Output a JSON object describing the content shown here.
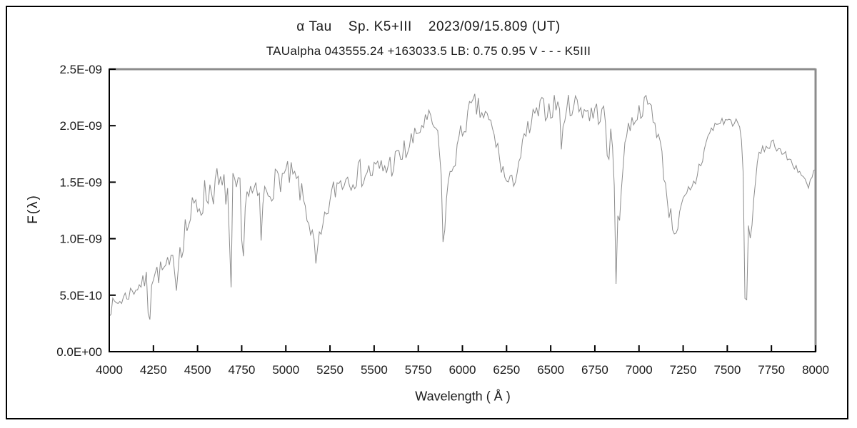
{
  "page": {
    "background": "#ffffff",
    "border_color": "#000000"
  },
  "chart_data": {
    "type": "line",
    "title": "α Tau    Sp. K5+III    2023/09/15.809 (UT)",
    "subtitle": "TAUalpha 043555.24 +163033.5 LB: 0.75 0.95 V - - - K5III",
    "xlabel": "Wavelength ( Å )",
    "ylabel": "F(λ)",
    "xlim": [
      4000,
      8000
    ],
    "ylim": [
      0,
      2.5e-09
    ],
    "flux_scale": 1e-09,
    "grid": false,
    "legend": "none",
    "x_ticks": [
      4000,
      4250,
      4500,
      4750,
      5000,
      5250,
      5500,
      5750,
      6000,
      6250,
      6500,
      6750,
      7000,
      7250,
      7500,
      7750,
      8000
    ],
    "y_ticks": [
      {
        "value": 0,
        "label": "0.0E+00"
      },
      {
        "value": 5e-10,
        "label": "5.0E-10"
      },
      {
        "value": 1e-09,
        "label": "1.0E-09"
      },
      {
        "value": 1.5e-09,
        "label": "1.5E-09"
      },
      {
        "value": 2e-09,
        "label": "2.0E-09"
      },
      {
        "value": 2.5e-09,
        "label": "2.5E-09"
      }
    ],
    "line_color": "#8c8c8c",
    "axis_color": "#000000",
    "frame_color": "#8c8c8c",
    "sample_step": 10,
    "noise_seed": 7,
    "envelope_points": [
      [
        4000,
        0.38
      ],
      [
        4030,
        0.42
      ],
      [
        4060,
        0.45
      ],
      [
        4100,
        0.5
      ],
      [
        4140,
        0.55
      ],
      [
        4180,
        0.6
      ],
      [
        4220,
        0.63
      ],
      [
        4250,
        0.68
      ],
      [
        4280,
        0.7
      ],
      [
        4310,
        0.72
      ],
      [
        4340,
        0.74
      ],
      [
        4370,
        0.8
      ],
      [
        4400,
        0.95
      ],
      [
        4430,
        1.08
      ],
      [
        4460,
        1.18
      ],
      [
        4490,
        1.28
      ],
      [
        4520,
        1.33
      ],
      [
        4550,
        1.4
      ],
      [
        4580,
        1.45
      ],
      [
        4610,
        1.48
      ],
      [
        4640,
        1.42
      ],
      [
        4670,
        1.44
      ],
      [
        4700,
        1.46
      ],
      [
        4730,
        1.42
      ],
      [
        4760,
        1.4
      ],
      [
        4790,
        1.42
      ],
      [
        4820,
        1.38
      ],
      [
        4850,
        1.36
      ],
      [
        4880,
        1.4
      ],
      [
        4910,
        1.44
      ],
      [
        4940,
        1.5
      ],
      [
        4970,
        1.54
      ],
      [
        5000,
        1.56
      ],
      [
        5030,
        1.55
      ],
      [
        5060,
        1.5
      ],
      [
        5090,
        1.4
      ],
      [
        5120,
        1.22
      ],
      [
        5150,
        1.02
      ],
      [
        5175,
        0.9
      ],
      [
        5200,
        1.02
      ],
      [
        5230,
        1.22
      ],
      [
        5260,
        1.38
      ],
      [
        5290,
        1.48
      ],
      [
        5320,
        1.52
      ],
      [
        5350,
        1.55
      ],
      [
        5400,
        1.57
      ],
      [
        5450,
        1.58
      ],
      [
        5500,
        1.6
      ],
      [
        5550,
        1.62
      ],
      [
        5600,
        1.66
      ],
      [
        5650,
        1.72
      ],
      [
        5700,
        1.82
      ],
      [
        5740,
        1.92
      ],
      [
        5780,
        2.02
      ],
      [
        5810,
        2.05
      ],
      [
        5840,
        2.0
      ],
      [
        5865,
        1.85
      ],
      [
        5880,
        1.55
      ],
      [
        5893,
        1.02
      ],
      [
        5905,
        1.3
      ],
      [
        5920,
        1.5
      ],
      [
        5950,
        1.68
      ],
      [
        5980,
        1.85
      ],
      [
        6010,
        2.0
      ],
      [
        6040,
        2.12
      ],
      [
        6070,
        2.18
      ],
      [
        6100,
        2.12
      ],
      [
        6130,
        2.08
      ],
      [
        6160,
        2.0
      ],
      [
        6190,
        1.85
      ],
      [
        6220,
        1.65
      ],
      [
        6250,
        1.5
      ],
      [
        6280,
        1.48
      ],
      [
        6310,
        1.62
      ],
      [
        6340,
        1.8
      ],
      [
        6370,
        1.95
      ],
      [
        6400,
        2.05
      ],
      [
        6430,
        2.12
      ],
      [
        6460,
        2.16
      ],
      [
        6490,
        2.14
      ],
      [
        6520,
        2.18
      ],
      [
        6550,
        2.2
      ],
      [
        6580,
        2.14
      ],
      [
        6610,
        2.18
      ],
      [
        6640,
        2.2
      ],
      [
        6670,
        2.16
      ],
      [
        6700,
        2.14
      ],
      [
        6730,
        2.1
      ],
      [
        6760,
        2.12
      ],
      [
        6790,
        2.1
      ],
      [
        6820,
        2.06
      ],
      [
        6845,
        2.0
      ],
      [
        6862,
        1.65
      ],
      [
        6872,
        1.1
      ],
      [
        6882,
        1.35
      ],
      [
        6892,
        1.15
      ],
      [
        6905,
        1.6
      ],
      [
        6920,
        1.85
      ],
      [
        6940,
        1.98
      ],
      [
        6965,
        2.05
      ],
      [
        6990,
        2.1
      ],
      [
        7015,
        2.15
      ],
      [
        7040,
        2.2
      ],
      [
        7065,
        2.18
      ],
      [
        7090,
        2.02
      ],
      [
        7115,
        1.88
      ],
      [
        7140,
        1.6
      ],
      [
        7165,
        1.3
      ],
      [
        7190,
        1.12
      ],
      [
        7215,
        1.08
      ],
      [
        7235,
        1.22
      ],
      [
        7255,
        1.32
      ],
      [
        7275,
        1.38
      ],
      [
        7300,
        1.42
      ],
      [
        7325,
        1.55
      ],
      [
        7350,
        1.68
      ],
      [
        7375,
        1.82
      ],
      [
        7400,
        1.94
      ],
      [
        7430,
        2.0
      ],
      [
        7460,
        2.03
      ],
      [
        7490,
        2.05
      ],
      [
        7520,
        2.04
      ],
      [
        7550,
        2.02
      ],
      [
        7575,
        1.98
      ],
      [
        7590,
        1.6
      ],
      [
        7600,
        0.55
      ],
      [
        7608,
        0.42
      ],
      [
        7616,
        1.2
      ],
      [
        7624,
        0.98
      ],
      [
        7632,
        1.02
      ],
      [
        7642,
        1.18
      ],
      [
        7652,
        1.4
      ],
      [
        7664,
        1.6
      ],
      [
        7680,
        1.72
      ],
      [
        7700,
        1.78
      ],
      [
        7720,
        1.82
      ],
      [
        7740,
        1.84
      ],
      [
        7760,
        1.85
      ],
      [
        7780,
        1.82
      ],
      [
        7800,
        1.78
      ],
      [
        7825,
        1.74
      ],
      [
        7850,
        1.7
      ],
      [
        7875,
        1.66
      ],
      [
        7900,
        1.62
      ],
      [
        7925,
        1.55
      ],
      [
        7945,
        1.48
      ],
      [
        7960,
        1.44
      ],
      [
        7975,
        1.52
      ],
      [
        7990,
        1.58
      ],
      [
        8000,
        1.6
      ]
    ],
    "noise_segments": [
      [
        4000,
        4200,
        0.07
      ],
      [
        4200,
        4390,
        0.11
      ],
      [
        4390,
        4660,
        0.17
      ],
      [
        4660,
        5080,
        0.13
      ],
      [
        5080,
        5260,
        0.09
      ],
      [
        5260,
        5720,
        0.13
      ],
      [
        5720,
        5868,
        0.09
      ],
      [
        5868,
        5935,
        0.05
      ],
      [
        5935,
        6180,
        0.11
      ],
      [
        6180,
        6340,
        0.09
      ],
      [
        6340,
        6855,
        0.11
      ],
      [
        6855,
        6935,
        0.06
      ],
      [
        6935,
        7105,
        0.08
      ],
      [
        7105,
        7270,
        0.09
      ],
      [
        7270,
        7360,
        0.1
      ],
      [
        7360,
        7585,
        0.045
      ],
      [
        7585,
        7662,
        0.05
      ],
      [
        7662,
        7925,
        0.045
      ],
      [
        7925,
        8000,
        0.05
      ]
    ],
    "absorption_spikes": [
      [
        4226,
        0.17,
        14
      ],
      [
        4383,
        0.45,
        11
      ],
      [
        4687,
        0.2,
        11
      ],
      [
        4756,
        0.48,
        11
      ],
      [
        4861,
        0.95,
        12
      ],
      [
        5170,
        0.78,
        12
      ],
      [
        5893,
        0.93,
        13
      ],
      [
        6563,
        1.62,
        11
      ],
      [
        6825,
        1.4,
        11
      ],
      [
        6870,
        0.6,
        12
      ],
      [
        7605,
        0.38,
        12
      ]
    ]
  }
}
